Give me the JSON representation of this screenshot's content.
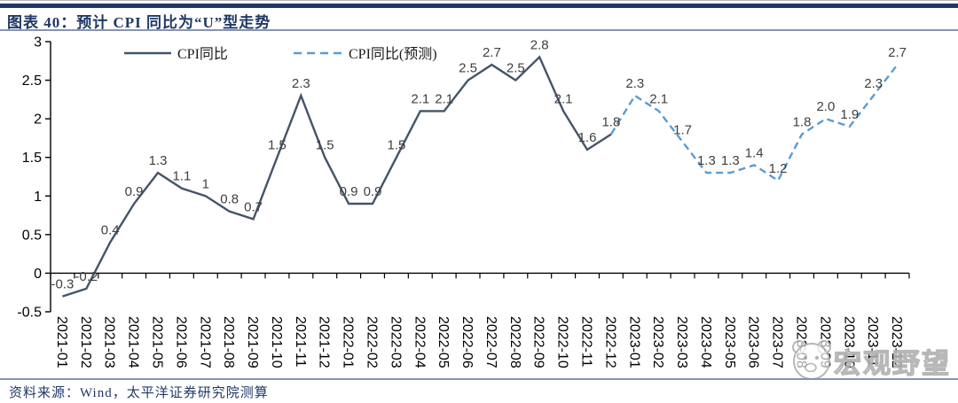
{
  "footer": {
    "source": "资料来源：Wind，太平洋证券研究院测算"
  },
  "watermark": {
    "text": "宏观野望",
    "icon": "panda-face-icon"
  },
  "palette": {
    "actual_line": "#44546A",
    "forecast_line": "#5B9BD5",
    "title_text": "#1F3864",
    "accent_bar": "#1F3864",
    "divider": "#8794b2",
    "data_label": "#3F3F3F",
    "axis": "#000000",
    "watermark_gray": "#b0b0b0"
  },
  "chart_data": {
    "type": "line",
    "title": "图表 40：预计 CPI 同比为“U”型走势",
    "xlabel": "",
    "ylabel": "",
    "ylim": [
      -0.5,
      3
    ],
    "yticks": [
      3,
      2.5,
      2,
      1.5,
      1,
      0.5,
      0,
      -0.5
    ],
    "grid": false,
    "legend_position": "top",
    "categories": [
      "2021-01",
      "2021-02",
      "2021-03",
      "2021-04",
      "2021-05",
      "2021-06",
      "2021-07",
      "2021-08",
      "2021-09",
      "2021-10",
      "2021-11",
      "2021-12",
      "2022-01",
      "2022-02",
      "2022-03",
      "2022-04",
      "2022-05",
      "2022-06",
      "2022-07",
      "2022-08",
      "2022-09",
      "2022-10",
      "2022-11",
      "2022-12",
      "2023-01",
      "2023-02",
      "2023-03",
      "2023-04",
      "2023-05",
      "2023-06",
      "2023-07",
      "2023-08",
      "2023-09",
      "2023-10",
      "2023-11",
      "2023-12"
    ],
    "series": [
      {
        "name": "CPI同比",
        "style": "solid",
        "color": "#44546A",
        "start_index": 0,
        "values": [
          -0.3,
          -0.2,
          0.4,
          0.9,
          1.3,
          1.1,
          1,
          0.8,
          0.7,
          1.5,
          2.3,
          1.5,
          0.9,
          0.9,
          1.5,
          2.1,
          2.1,
          2.5,
          2.7,
          2.5,
          2.8,
          2.1,
          1.6,
          1.8
        ]
      },
      {
        "name": "CPI同比(预测)",
        "style": "dashed",
        "color": "#5B9BD5",
        "start_index": 23,
        "values": [
          1.8,
          2.3,
          2.1,
          1.7,
          1.3,
          1.3,
          1.4,
          1.2,
          1.8,
          2.0,
          1.9,
          2.3,
          2.7
        ]
      }
    ],
    "point_labels": [
      "-0.3",
      "-0.2",
      "0.4",
      "0.9",
      "1.3",
      "1.1",
      "1",
      "0.8",
      "0.7",
      "1.5",
      "2.3",
      "1.5",
      "0.9",
      "0.9",
      "1.5",
      "2.1",
      "2.1",
      "2.5",
      "2.7",
      "2.5",
      "2.8",
      "2.1",
      "1.6",
      "1.8",
      "2.3",
      "2.1",
      "1.7",
      "1.3",
      "1.3",
      "1.4",
      "1.2",
      "1.8",
      "2.0",
      "1.9",
      "2.3",
      "2.7"
    ]
  }
}
